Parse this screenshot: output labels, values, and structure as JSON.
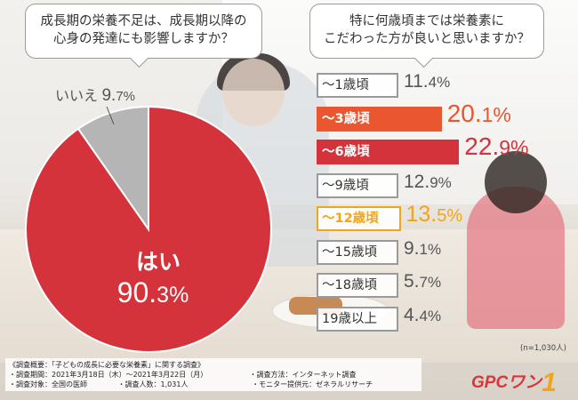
{
  "left_chart": {
    "question_line1": "成長期の栄養不足は、成長期以降の",
    "question_line2": "心身の発達にも影響しますか？",
    "chart_data": {
      "type": "pie",
      "slices": [
        {
          "label": "はい",
          "value": 90.3,
          "value_int": "90.",
          "value_frac": "3%",
          "color": "#d5333b"
        },
        {
          "label": "いいえ",
          "value": 9.7,
          "value_int": "9.",
          "value_frac": "7%",
          "color": "#b5b5b5"
        }
      ]
    }
  },
  "right_chart": {
    "question_line1": "特に何歳頃までは栄養素に",
    "question_line2": "こだわった方が良いと思いますか？",
    "chart_data": {
      "type": "bar",
      "orientation": "horizontal",
      "categories": [
        "〜1歳頃",
        "〜3歳頃",
        "〜6歳頃",
        "〜9歳頃",
        "〜12歳頃",
        "〜15歳頃",
        "〜18歳頃",
        "19歳以上"
      ],
      "values": [
        11.4,
        20.1,
        22.9,
        12.9,
        13.5,
        9.1,
        5.7,
        4.4
      ],
      "value_labels": [
        {
          "int": "11.",
          "frac": "4%"
        },
        {
          "int": "20.",
          "frac": "1%"
        },
        {
          "int": "22.",
          "frac": "9%"
        },
        {
          "int": "12.",
          "frac": "9%"
        },
        {
          "int": "13.",
          "frac": "5%"
        },
        {
          "int": "9.",
          "frac": "1%"
        },
        {
          "int": "5.",
          "frac": "7%"
        },
        {
          "int": "4.",
          "frac": "4%"
        }
      ],
      "highlight": [
        "gray",
        "orange-red",
        "red",
        "gray",
        "orange",
        "gray",
        "gray",
        "gray"
      ],
      "colors": {
        "gray": "#9a9a9a",
        "orange-red": "#e9562f",
        "red": "#d5333b",
        "orange": "#f1a51d"
      }
    },
    "sample_note": "(n=1,030人)"
  },
  "survey": {
    "line1": "《調査概要：「子どもの成長に必要な栄養素」に関する調査》",
    "period": "・調査期間：2021年3月18日（木）〜2021年3月22日（月）",
    "method": "・調査方法：インターネット調査",
    "target": "・調査対象：全国の医師",
    "count": "・調査人数：1,031人",
    "provider": "・モニター提供元：ゼネラルリサーチ"
  },
  "logo": {
    "text": "GPCワン",
    "one": "1"
  }
}
